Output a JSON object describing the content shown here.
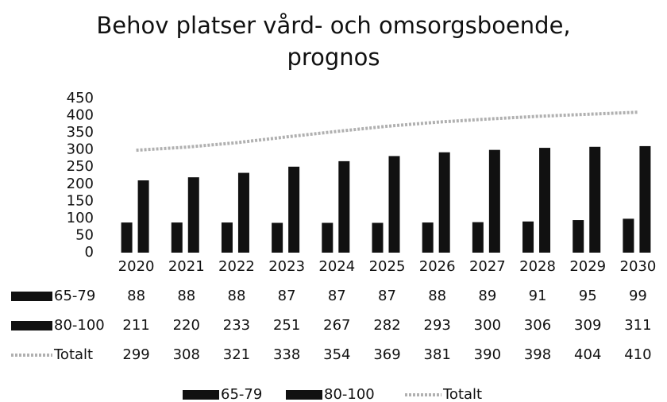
{
  "chart_data": {
    "type": "bar",
    "title": "Behov platser vård- och omsorgsboende, prognos",
    "categories": [
      "2020",
      "2021",
      "2022",
      "2023",
      "2024",
      "2025",
      "2026",
      "2027",
      "2028",
      "2029",
      "2030"
    ],
    "series": [
      {
        "name": "65-79",
        "color": "#111111",
        "type": "bar",
        "values": [
          88,
          88,
          88,
          87,
          87,
          87,
          88,
          89,
          91,
          95,
          99
        ]
      },
      {
        "name": "80-100",
        "color": "#111111",
        "type": "bar",
        "values": [
          211,
          220,
          233,
          251,
          267,
          282,
          293,
          300,
          306,
          309,
          311
        ]
      },
      {
        "name": "Totalt",
        "color": "#b0b0b0",
        "type": "line",
        "values": [
          299,
          308,
          321,
          338,
          354,
          369,
          381,
          390,
          398,
          404,
          410
        ]
      }
    ],
    "ylim": [
      0,
      450
    ],
    "yticks": [
      0,
      50,
      100,
      150,
      200,
      250,
      300,
      350,
      400,
      450
    ],
    "grid": false,
    "legend": "bottom",
    "data_table": true
  }
}
